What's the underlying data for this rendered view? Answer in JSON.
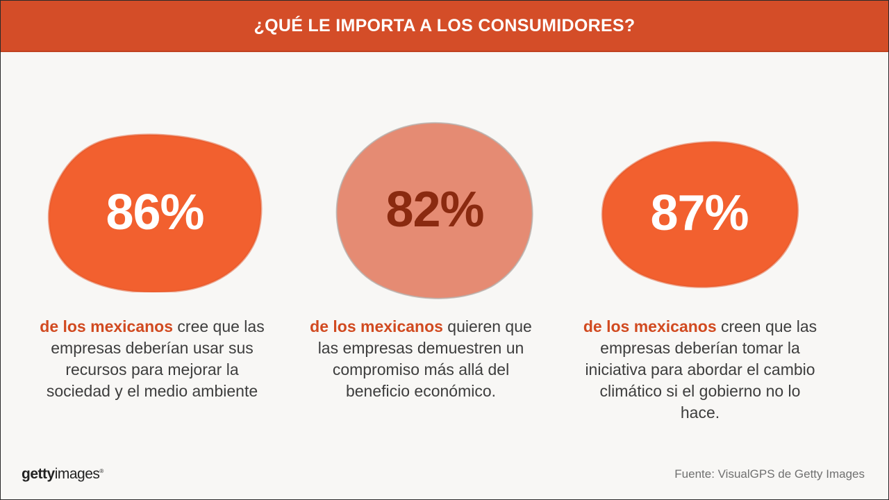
{
  "header": {
    "title": "¿QUÉ LE IMPORTA A LOS CONSUMIDORES?"
  },
  "stats": [
    {
      "value": "86%",
      "highlight": "de los mexicanos",
      "text": " cree que las empresas deberían usar sus recursos para mejorar la sociedad y el medio ambiente"
    },
    {
      "value": "82%",
      "highlight": "de los mexicanos",
      "text": " quieren que las empresas demuestren un compromiso más allá del beneficio económico."
    },
    {
      "value": "87%",
      "highlight": "de los mexicanos",
      "text": " creen que las empresas deberían tomar la iniciativa para abordar el cambio climático si el gobierno no lo hace."
    }
  ],
  "logo": {
    "part1": "getty",
    "part2": "images",
    "mark": "®"
  },
  "source": "Fuente: VisualGPS de Getty Images",
  "colors": {
    "header": "#d44d28",
    "blob_primary": "#f2602f",
    "blob_secondary": "#e58b73",
    "highlight": "#d14a20",
    "stat_light": "#ffffff",
    "stat_dark": "#8a2a10"
  }
}
